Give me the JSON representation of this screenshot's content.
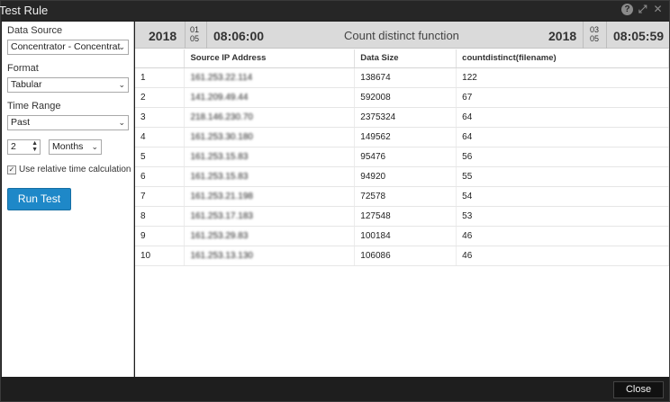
{
  "window": {
    "title": "Test Rule"
  },
  "left_panel": {
    "data_source": {
      "label": "Data Source",
      "value": "Concentrator - Concentrat"
    },
    "format": {
      "label": "Format",
      "value": "Tabular"
    },
    "time_range": {
      "label": "Time Range",
      "value": "Past"
    },
    "amount": {
      "value": "2"
    },
    "unit": {
      "value": "Months"
    },
    "relative_time": {
      "label": "Use relative time calculation",
      "checked": true
    },
    "run_button": "Run Test"
  },
  "header": {
    "start": {
      "year": "2018",
      "month": "01",
      "day": "05",
      "time": "08:06:00"
    },
    "title": "Count distinct function",
    "end": {
      "year": "2018",
      "month": "03",
      "day": "05",
      "time": "08:05:59"
    }
  },
  "table": {
    "columns": [
      "",
      "Source IP Address",
      "Data Size",
      "countdistinct(filename)"
    ],
    "rows": [
      {
        "n": "1",
        "ip": "161.253.22.114",
        "size": "138674",
        "count": "122"
      },
      {
        "n": "2",
        "ip": "141.209.49.44",
        "size": "592008",
        "count": "67"
      },
      {
        "n": "3",
        "ip": "218.146.230.70",
        "size": "2375324",
        "count": "64"
      },
      {
        "n": "4",
        "ip": "161.253.30.180",
        "size": "149562",
        "count": "64"
      },
      {
        "n": "5",
        "ip": "161.253.15.83",
        "size": "95476",
        "count": "56"
      },
      {
        "n": "6",
        "ip": "161.253.15.83",
        "size": "94920",
        "count": "55"
      },
      {
        "n": "7",
        "ip": "161.253.21.198",
        "size": "72578",
        "count": "54"
      },
      {
        "n": "8",
        "ip": "161.253.17.183",
        "size": "127548",
        "count": "53"
      },
      {
        "n": "9",
        "ip": "161.253.29.83",
        "size": "100184",
        "count": "46"
      },
      {
        "n": "10",
        "ip": "161.253.13.130",
        "size": "106086",
        "count": "46"
      }
    ]
  },
  "footer": {
    "close_button": "Close"
  }
}
